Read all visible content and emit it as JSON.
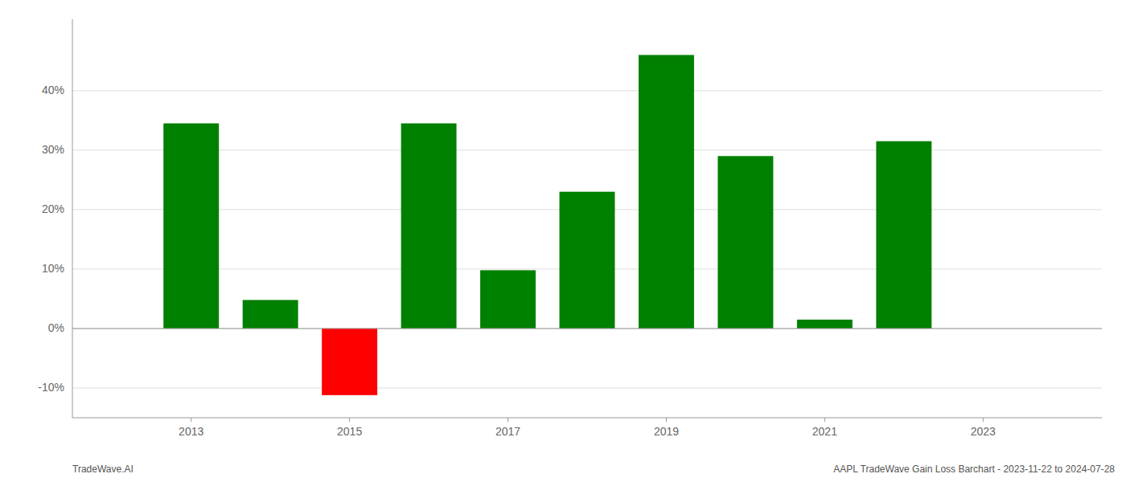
{
  "chart_data": {
    "type": "bar",
    "x": [
      2013,
      2014,
      2015,
      2016,
      2017,
      2018,
      2019,
      2020,
      2021,
      2022
    ],
    "values": [
      0.345,
      0.048,
      -0.112,
      0.345,
      0.098,
      0.23,
      0.46,
      0.29,
      0.015,
      0.315
    ],
    "colors": [
      "#008000",
      "#008000",
      "#ff0000",
      "#008000",
      "#008000",
      "#008000",
      "#008000",
      "#008000",
      "#008000",
      "#008000"
    ],
    "xlim": [
      2011.5,
      2024.5
    ],
    "xticks": [
      2013,
      2015,
      2017,
      2019,
      2021,
      2023
    ],
    "ylim": [
      -0.15,
      0.52
    ],
    "yticks": [
      {
        "value": -0.1,
        "label": "-10%"
      },
      {
        "value": 0.0,
        "label": "0%"
      },
      {
        "value": 0.1,
        "label": "10%"
      },
      {
        "value": 0.2,
        "label": "20%"
      },
      {
        "value": 0.3,
        "label": "30%"
      },
      {
        "value": 0.4,
        "label": "40%"
      }
    ],
    "grid": true,
    "annotations": [
      "TradeWave.AI",
      "AAPL TradeWave Gain Loss Barchart - 2023-11-22 to 2024-07-28"
    ]
  }
}
